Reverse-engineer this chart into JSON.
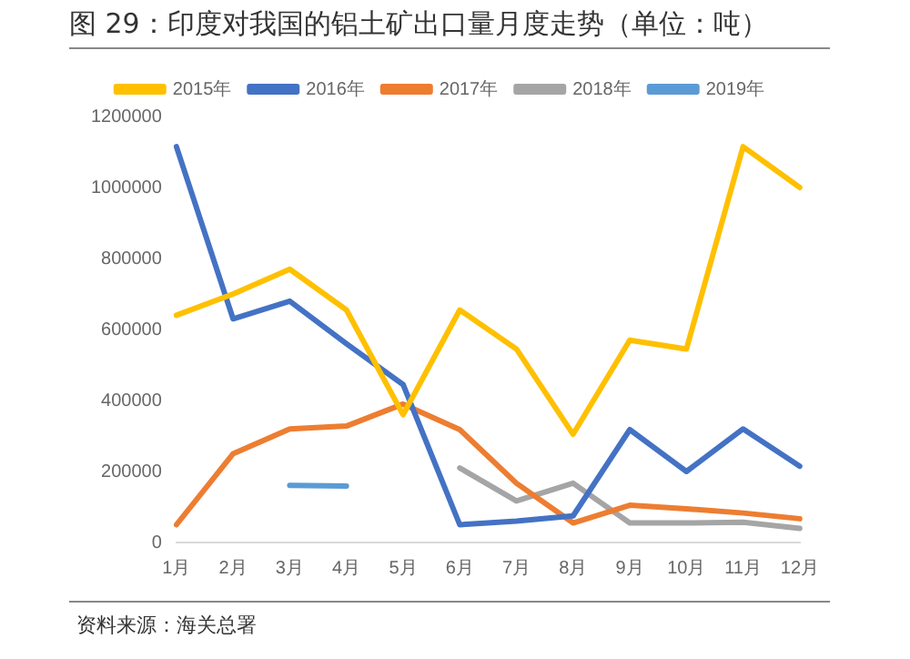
{
  "chart_data": {
    "type": "line",
    "title": "图 29：印度对我国的铝土矿出口量月度走势（单位：吨）",
    "categories": [
      "1月",
      "2月",
      "3月",
      "4月",
      "5月",
      "6月",
      "7月",
      "8月",
      "9月",
      "10月",
      "11月",
      "12月"
    ],
    "series": [
      {
        "name": "2015年",
        "color": "#ffc000",
        "values": [
          640000,
          700000,
          770000,
          655000,
          360000,
          655000,
          545000,
          305000,
          570000,
          545000,
          1115000,
          1000000
        ]
      },
      {
        "name": "2016年",
        "color": "#4472c4",
        "values": [
          1115000,
          630000,
          680000,
          560000,
          445000,
          50000,
          60000,
          75000,
          318000,
          200000,
          320000,
          215000
        ]
      },
      {
        "name": "2017年",
        "color": "#ed7d31",
        "values": [
          50000,
          250000,
          320000,
          328000,
          390000,
          318000,
          167000,
          55000,
          105000,
          95000,
          83000,
          67000
        ]
      },
      {
        "name": "2018年",
        "color": "#a5a5a5",
        "values": [
          null,
          null,
          null,
          null,
          null,
          210000,
          117000,
          167000,
          55000,
          55000,
          57000,
          40000
        ]
      },
      {
        "name": "2019年",
        "color": "#5b9bd5",
        "values": [
          null,
          null,
          161000,
          159000,
          null,
          null,
          null,
          null,
          null,
          null,
          null,
          null
        ]
      }
    ],
    "ylim": [
      0,
      1200000
    ],
    "yticks": [
      0,
      200000,
      400000,
      600000,
      800000,
      1000000,
      1200000
    ],
    "grid": false,
    "legend": "top",
    "marker": "none",
    "line_style": "solid",
    "annotations": [
      "资料来源：海关总署"
    ]
  }
}
